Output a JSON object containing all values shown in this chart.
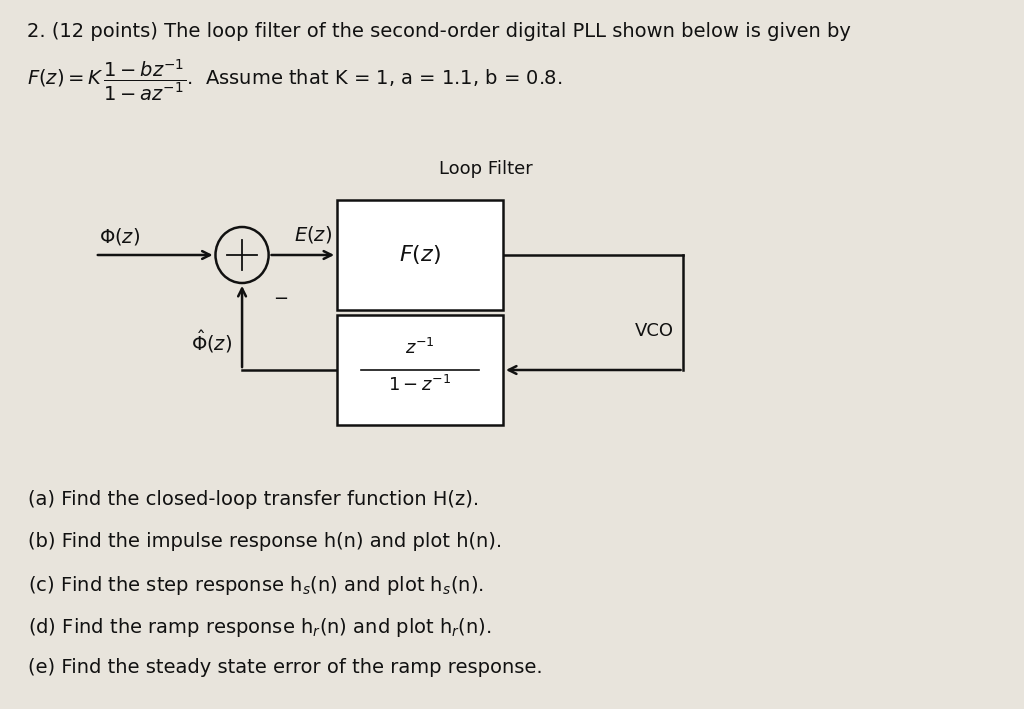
{
  "bg_color": "#e8e4dc",
  "title_line": "2. (12 points) The loop filter of the second-order digital PLL shown below is given by",
  "loop_filter_label": "Loop Filter",
  "vco_label": "VCO",
  "text_color": "#111111",
  "box_color": "#111111",
  "line_color": "#111111",
  "questions": [
    "(a) Find the closed-loop transfer function H(z).",
    "(b) Find the impulse response h(n) and plot h(n).",
    "(c) Find the step response h_s(n) and plot h_s(n).",
    "(d) Find the ramp response h_r(n) and plot h_r(n).",
    "(e) Find the steady state error of the ramp response."
  ]
}
